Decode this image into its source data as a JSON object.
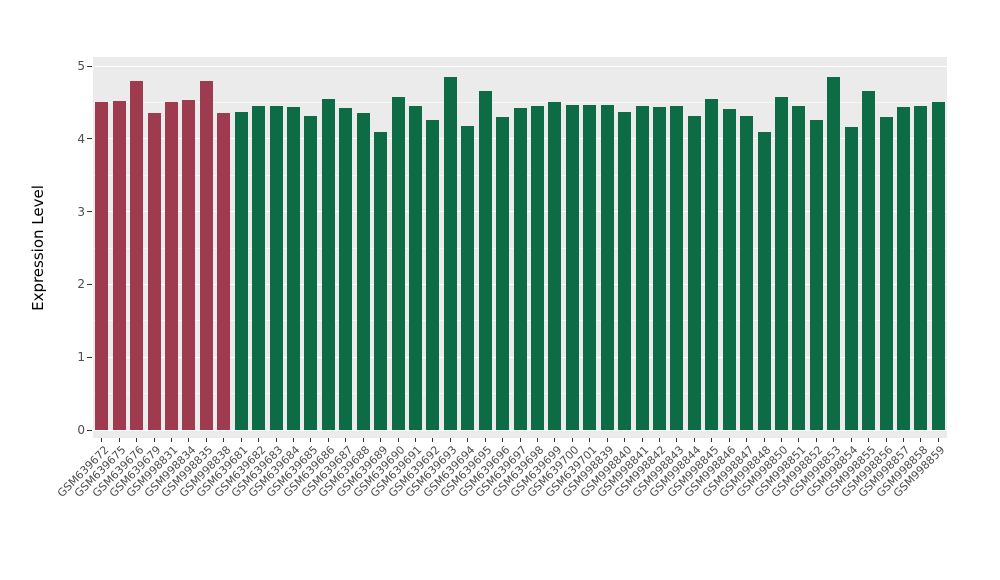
{
  "chart_data": {
    "type": "bar",
    "title": "",
    "xlabel": "",
    "ylabel": "Expression Level",
    "ylim": [
      0,
      5
    ],
    "yticks": [
      0,
      1,
      2,
      3,
      4,
      5
    ],
    "grid": "on",
    "legend": "none",
    "panel_bg": "#EBEBEB",
    "colors": {
      "red": "#9F3B4F",
      "green": "#0D6B45"
    },
    "categories": [
      "GSM639672",
      "GSM639675",
      "GSM639676",
      "GSM639679",
      "GSM998831",
      "GSM998834",
      "GSM998835",
      "GSM998838",
      "GSM639681",
      "GSM639682",
      "GSM639683",
      "GSM639684",
      "GSM639685",
      "GSM639686",
      "GSM639687",
      "GSM639688",
      "GSM639689",
      "GSM639690",
      "GSM639691",
      "GSM639692",
      "GSM639693",
      "GSM639694",
      "GSM639695",
      "GSM639696",
      "GSM639697",
      "GSM639698",
      "GSM639699",
      "GSM639700",
      "GSM639701",
      "GSM998839",
      "GSM998840",
      "GSM998841",
      "GSM998842",
      "GSM998843",
      "GSM998844",
      "GSM998845",
      "GSM998846",
      "GSM998847",
      "GSM998848",
      "GSM998850",
      "GSM998851",
      "GSM998852",
      "GSM998853",
      "GSM998854",
      "GSM998855",
      "GSM998856",
      "GSM998857",
      "GSM998858",
      "GSM998859"
    ],
    "values": [
      4.5,
      4.52,
      4.8,
      4.35,
      4.5,
      4.53,
      4.8,
      4.35,
      4.37,
      4.45,
      4.45,
      4.44,
      4.32,
      4.55,
      4.42,
      4.35,
      4.1,
      4.58,
      4.45,
      4.26,
      4.85,
      4.17,
      4.65,
      4.3,
      4.43,
      4.45,
      4.5,
      4.47,
      4.47,
      4.46,
      4.37,
      4.45,
      4.44,
      4.45,
      4.32,
      4.55,
      4.41,
      4.32,
      4.1,
      4.57,
      4.45,
      4.26,
      4.85,
      4.16,
      4.65,
      4.3,
      4.44,
      4.45,
      4.5
    ],
    "groups": [
      "red",
      "red",
      "red",
      "red",
      "red",
      "red",
      "red",
      "red",
      "green",
      "green",
      "green",
      "green",
      "green",
      "green",
      "green",
      "green",
      "green",
      "green",
      "green",
      "green",
      "green",
      "green",
      "green",
      "green",
      "green",
      "green",
      "green",
      "green",
      "green",
      "green",
      "green",
      "green",
      "green",
      "green",
      "green",
      "green",
      "green",
      "green",
      "green",
      "green",
      "green",
      "green",
      "green",
      "green",
      "green",
      "green",
      "green",
      "green",
      "green"
    ]
  }
}
